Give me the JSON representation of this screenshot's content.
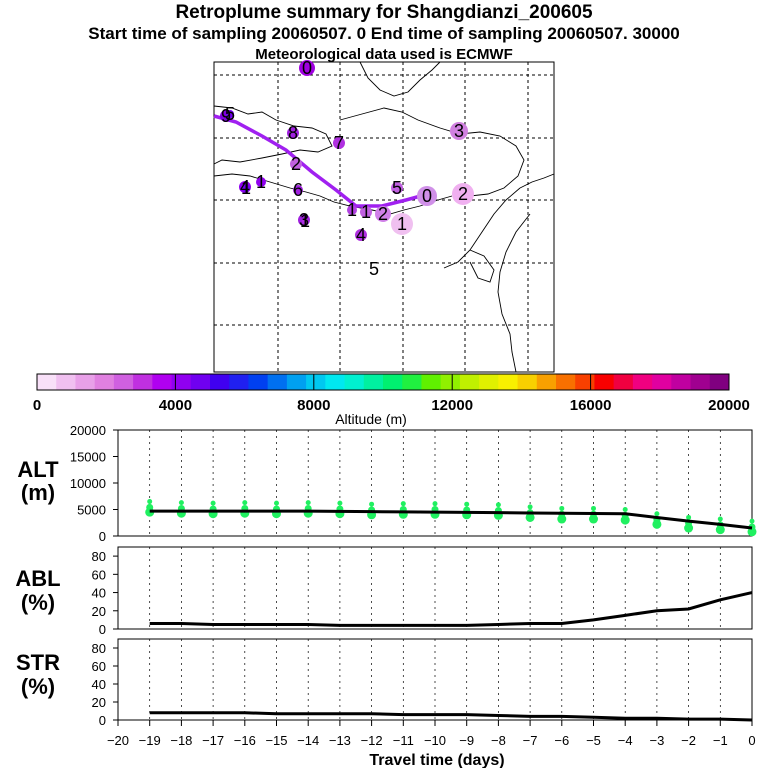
{
  "header": {
    "title": "Retroplume summary for Shangdianzi_200605",
    "sampling_line": "Start time of sampling 20060507.    0     End time of sampling 20060507. 30000",
    "met_line": "Meteorological data used is ECMWF"
  },
  "colorbar": {
    "label": "Altitude  (m)",
    "ticks": [
      "0",
      "4000",
      "8000",
      "12000",
      "16000",
      "20000"
    ],
    "colors": [
      "#f8e0f8",
      "#f0c0f0",
      "#e8a0e8",
      "#e080e0",
      "#d060e0",
      "#c030e0",
      "#b000f0",
      "#9000f0",
      "#7000f0",
      "#4000f0",
      "#2020f0",
      "#0040f0",
      "#0070f0",
      "#00a0f0",
      "#00c8f0",
      "#00e8f0",
      "#00f0d0",
      "#00f0a0",
      "#00f070",
      "#20f040",
      "#60f000",
      "#90f000",
      "#c0f000",
      "#e0f000",
      "#f8f000",
      "#f8d000",
      "#f8a000",
      "#f87000",
      "#f84000",
      "#f80000",
      "#f00040",
      "#f00080",
      "#e000a0",
      "#c000a0",
      "#a00090",
      "#800080"
    ]
  },
  "map": {
    "labels": [
      {
        "t": "0",
        "c": "#a000e0"
      },
      {
        "t": "9",
        "c": "#8000e0"
      },
      {
        "t": "8",
        "c": "#a020e0"
      },
      {
        "t": "7",
        "c": "#b030e0"
      },
      {
        "t": "3",
        "c": "#d080e0"
      },
      {
        "t": "2",
        "c": "#c060e0"
      },
      {
        "t": "1",
        "c": "#9000f0"
      },
      {
        "t": "6",
        "c": "#a020e0"
      },
      {
        "t": "5",
        "c": "#c060e0"
      },
      {
        "t": "0",
        "c": "#d090e8"
      },
      {
        "t": "2",
        "c": "#f0b0f0"
      },
      {
        "t": "1",
        "c": "#b040e0"
      },
      {
        "t": "1",
        "c": "#c060e0"
      },
      {
        "t": "2",
        "c": "#d080e8"
      },
      {
        "t": "1",
        "c": "#f0c0f0"
      },
      {
        "t": "4",
        "c": "#b030e0"
      },
      {
        "t": "5",
        "c": "#ffffff"
      },
      {
        "t": "3",
        "c": "#a020e0"
      },
      {
        "t": "4",
        "c": "#9000f0"
      },
      {
        "t": "1",
        "c": "#7000f0"
      },
      {
        "t": "1",
        "c": "#b030e0"
      },
      {
        "t": "5",
        "c": "#7000f0"
      }
    ]
  },
  "panels": {
    "alt": {
      "label_top": "ALT",
      "label_bottom": "(m)",
      "ticks": [
        "20000",
        "15000",
        "10000",
        "5000",
        "0"
      ]
    },
    "abl": {
      "label_top": "ABL",
      "label_bottom": "(%)",
      "ticks": [
        "80",
        "60",
        "40",
        "20",
        "0"
      ]
    },
    "str": {
      "label_top": "STR",
      "label_bottom": "(%)",
      "ticks": [
        "80",
        "60",
        "40",
        "20",
        "0"
      ]
    }
  },
  "chart_data": {
    "type": "line",
    "title": "Retroplume summary for Shangdianzi_200605",
    "xlabel": "Travel time (days)",
    "xlim": [
      -20,
      0
    ],
    "x_ticks": [
      -20,
      -19,
      -18,
      -17,
      -16,
      -15,
      -14,
      -13,
      -12,
      -11,
      -10,
      -9,
      -8,
      -7,
      -6,
      -5,
      -4,
      -3,
      -2,
      -1,
      0
    ],
    "panels": [
      {
        "name": "ALT (m)",
        "ylim": [
          0,
          20000
        ],
        "series": [
          {
            "name": "mean altitude",
            "x": [
              -19,
              -18,
              -17,
              -16,
              -15,
              -14,
              -13,
              -12,
              -11,
              -10,
              -9,
              -8,
              -7,
              -6,
              -5,
              -4,
              -3,
              -2,
              -1,
              0
            ],
            "values": [
              4700,
              4700,
              4700,
              4700,
              4700,
              4700,
              4650,
              4600,
              4550,
              4500,
              4450,
              4400,
              4350,
              4300,
              4250,
              4200,
              3500,
              2800,
              2200,
              1500
            ]
          },
          {
            "name": "altitude clusters",
            "x": [
              -19,
              -18,
              -17,
              -16,
              -15,
              -14,
              -13,
              -12,
              -11,
              -10,
              -9,
              -8,
              -7,
              -6,
              -5,
              -4,
              -3,
              -2,
              -1,
              0
            ],
            "values": [
              4500,
              4300,
              4200,
              4300,
              4200,
              4300,
              4200,
              4000,
              4100,
              4100,
              4000,
              3900,
              3500,
              3200,
              3200,
              3000,
              2200,
              1500,
              1200,
              800
            ]
          }
        ]
      },
      {
        "name": "ABL (%)",
        "ylim": [
          0,
          90
        ],
        "series": [
          {
            "name": "ABL fraction",
            "x": [
              -19,
              -18,
              -17,
              -16,
              -15,
              -14,
              -13,
              -12,
              -11,
              -10,
              -9,
              -8,
              -7,
              -6,
              -5,
              -4,
              -3,
              -2,
              -1,
              0
            ],
            "values": [
              6,
              6,
              5,
              5,
              5,
              5,
              4,
              4,
              4,
              4,
              4,
              5,
              6,
              6,
              10,
              15,
              20,
              22,
              32,
              40
            ]
          }
        ]
      },
      {
        "name": "STR (%)",
        "ylim": [
          0,
          90
        ],
        "series": [
          {
            "name": "Stratosphere fraction",
            "x": [
              -19,
              -18,
              -17,
              -16,
              -15,
              -14,
              -13,
              -12,
              -11,
              -10,
              -9,
              -8,
              -7,
              -6,
              -5,
              -4,
              -3,
              -2,
              -1,
              0
            ],
            "values": [
              8,
              8,
              8,
              8,
              7,
              7,
              7,
              7,
              6,
              6,
              6,
              5,
              4,
              4,
              3,
              2,
              2,
              1,
              1,
              0
            ]
          }
        ]
      }
    ]
  }
}
